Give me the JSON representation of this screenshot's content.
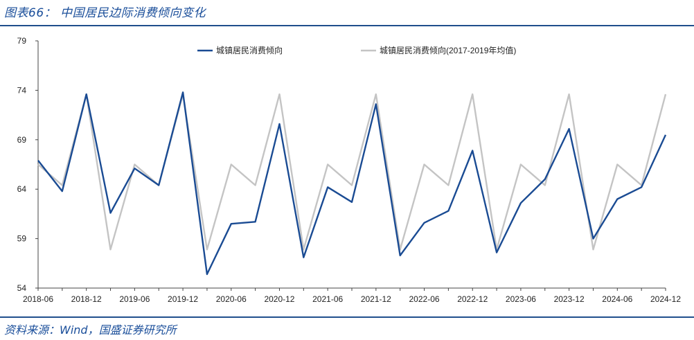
{
  "header": {
    "title": "图表66：  中国居民边际消费倾向变化"
  },
  "footer": {
    "source": "资料来源：Wind，国盛证券研究所"
  },
  "colors": {
    "accent": "#1f4e8c",
    "series_primary": "#1a4b93",
    "series_secondary": "#c4c4c4"
  },
  "chart_data": {
    "type": "line",
    "title": "",
    "xlabel": "",
    "ylabel": "",
    "ylim": [
      54,
      79
    ],
    "yticks": [
      54,
      59,
      64,
      69,
      74,
      79
    ],
    "grid": false,
    "legend_position": "top",
    "x": [
      "2018-06",
      "2018-09",
      "2018-12",
      "2019-03",
      "2019-06",
      "2019-09",
      "2019-12",
      "2020-03",
      "2020-06",
      "2020-09",
      "2020-12",
      "2021-03",
      "2021-06",
      "2021-09",
      "2021-12",
      "2022-03",
      "2022-06",
      "2022-09",
      "2022-12",
      "2023-03",
      "2023-06",
      "2023-09",
      "2023-12",
      "2024-03",
      "2024-06",
      "2024-09",
      "2024-12"
    ],
    "xtick_labels": [
      "2018-06",
      "2018-12",
      "2019-06",
      "2019-12",
      "2020-06",
      "2020-12",
      "2021-06",
      "2021-12",
      "2022-06",
      "2022-12",
      "2023-06",
      "2023-12",
      "2024-06",
      "2024-12"
    ],
    "series": [
      {
        "name": "城镇居民消费倾向",
        "color": "#1a4b93",
        "values": [
          66.9,
          63.8,
          73.6,
          61.6,
          66.1,
          64.4,
          73.8,
          55.4,
          60.5,
          60.7,
          70.6,
          57.1,
          64.2,
          62.7,
          72.6,
          57.3,
          60.6,
          61.8,
          67.9,
          57.6,
          62.6,
          65.0,
          70.1,
          59.0,
          63.0,
          64.2,
          69.5
        ]
      },
      {
        "name": "城镇居民消费倾向(2017-2019年均值)",
        "color": "#c4c4c4",
        "values": [
          66.5,
          64.4,
          73.6,
          57.9,
          66.5,
          64.4,
          73.6,
          57.9,
          66.5,
          64.4,
          73.6,
          57.9,
          66.5,
          64.4,
          73.6,
          57.9,
          66.5,
          64.4,
          73.6,
          57.9,
          66.5,
          64.4,
          73.6,
          57.9,
          66.5,
          64.4,
          73.6
        ]
      }
    ]
  }
}
